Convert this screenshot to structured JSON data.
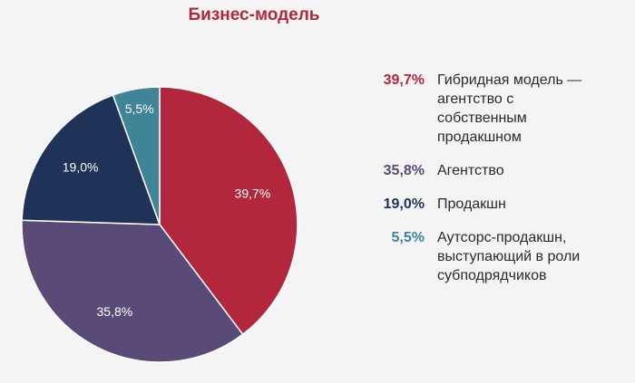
{
  "chart_data": {
    "type": "pie",
    "title": "Бизнес-модель",
    "slices": [
      {
        "value": 39.7,
        "label": "39,7%",
        "name": "Гибридная модель — агентство с собственным продакшном",
        "color": "#b3273d"
      },
      {
        "value": 35.8,
        "label": "35,8%",
        "name": "Агентство",
        "color": "#5a4a78"
      },
      {
        "value": 19.0,
        "label": "19,0%",
        "name": "Продакшн",
        "color": "#1f3358"
      },
      {
        "value": 5.5,
        "label": "5,5%",
        "name": "Аутсорс-продакшн, выступающий в роли субподрядчиков",
        "color": "#3f8497"
      }
    ],
    "start_angle_deg": 0,
    "direction": "clockwise",
    "legend_position": "right"
  }
}
